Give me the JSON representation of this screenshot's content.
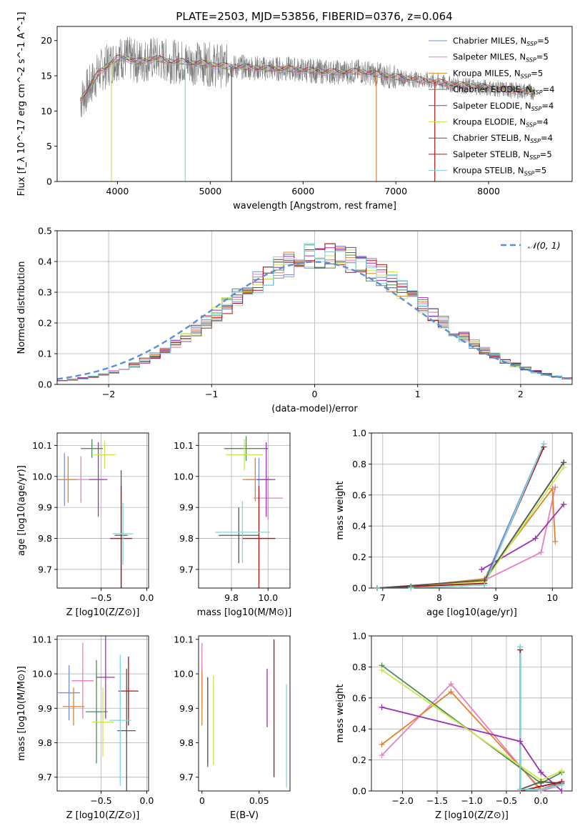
{
  "figure": {
    "title": "PLATE=2503, MJD=53856, FIBERID=0376, z=0.064"
  },
  "models": [
    {
      "name": "Chabrier MILES",
      "nssp": "5",
      "color": "#6f8fe0"
    },
    {
      "name": "Salpeter MILES",
      "nssp": "5",
      "color": "#e87fbf"
    },
    {
      "name": "Kroupa MILES",
      "nssp": "5",
      "color": "#e0822b"
    },
    {
      "name": "Chabrier ELODIE",
      "nssp": "4",
      "color": "#4e8b5a"
    },
    {
      "name": "Salpeter ELODIE",
      "nssp": "4",
      "color": "#9b2fb5"
    },
    {
      "name": "Kroupa ELODIE",
      "nssp": "4",
      "color": "#c9e84a"
    },
    {
      "name": "Chabrier STELIB",
      "nssp": "4",
      "color": "#555555"
    },
    {
      "name": "Salpeter STELIB",
      "nssp": "5",
      "color": "#b01010"
    },
    {
      "name": "Kroupa STELIB",
      "nssp": "5",
      "color": "#7fd6dc"
    }
  ],
  "chart_data": [
    {
      "id": "spectrum",
      "type": "line",
      "xlabel": "wavelength [Angstrom, rest frame]",
      "ylabel": "Flux [f_λ 10^-17 erg cm^-2 s^-1 A^-1]",
      "xlim": [
        3350,
        8900
      ],
      "ylim": [
        0,
        22
      ],
      "xticks": [
        4000,
        5000,
        6000,
        7000,
        8000
      ],
      "yticks": [
        0,
        5,
        10,
        15,
        20
      ],
      "grid": false,
      "legend_position": "upper-right",
      "data_color": "#7a7a7a",
      "continuum": [
        {
          "x": 3600,
          "y": 11.5
        },
        {
          "x": 3700,
          "y": 13.5
        },
        {
          "x": 3800,
          "y": 15.5
        },
        {
          "x": 3900,
          "y": 16.5
        },
        {
          "x": 4000,
          "y": 17.5
        },
        {
          "x": 4100,
          "y": 17.5
        },
        {
          "x": 4200,
          "y": 17.0
        },
        {
          "x": 4300,
          "y": 17.2
        },
        {
          "x": 4400,
          "y": 17.5
        },
        {
          "x": 4500,
          "y": 17.2
        },
        {
          "x": 4600,
          "y": 17.0
        },
        {
          "x": 4700,
          "y": 17.0
        },
        {
          "x": 4800,
          "y": 16.8
        },
        {
          "x": 4900,
          "y": 16.8
        },
        {
          "x": 5000,
          "y": 16.6
        },
        {
          "x": 5200,
          "y": 16.3
        },
        {
          "x": 5400,
          "y": 16.2
        },
        {
          "x": 5600,
          "y": 16.0
        },
        {
          "x": 5800,
          "y": 16.0
        },
        {
          "x": 6000,
          "y": 15.8
        },
        {
          "x": 6200,
          "y": 15.6
        },
        {
          "x": 6400,
          "y": 15.5
        },
        {
          "x": 6600,
          "y": 15.6
        },
        {
          "x": 6800,
          "y": 15.2
        },
        {
          "x": 7000,
          "y": 14.8
        },
        {
          "x": 7200,
          "y": 14.5
        },
        {
          "x": 7400,
          "y": 14.2
        },
        {
          "x": 7600,
          "y": 13.8
        },
        {
          "x": 7800,
          "y": 13.5
        },
        {
          "x": 8000,
          "y": 13.3
        },
        {
          "x": 8200,
          "y": 13.0
        },
        {
          "x": 8400,
          "y": 12.8
        },
        {
          "x": 8500,
          "y": 12.7
        }
      ],
      "dips": [
        {
          "x": 3934,
          "y": 0
        },
        {
          "x": 4730,
          "y": 0
        },
        {
          "x": 5230,
          "y": 0
        },
        {
          "x": 6790,
          "y": 0
        },
        {
          "x": 7420,
          "y": 0
        }
      ]
    },
    {
      "id": "residual-histogram",
      "type": "line",
      "xlabel": "(data-model)/error",
      "ylabel": "Normed distribution",
      "xlim": [
        -2.5,
        2.5
      ],
      "ylim": [
        0,
        0.5
      ],
      "xticks": [
        -2,
        -1,
        0,
        1,
        2
      ],
      "yticks": [
        0.0,
        0.1,
        0.2,
        0.3,
        0.4,
        0.5
      ],
      "grid": true,
      "legend": "𝒩(0, 1)",
      "legend_position": "upper-right",
      "reference_color": "#5a8fd8",
      "bin_width": 0.1,
      "shape_mu": 0.1,
      "shape_sigma": 0.95
    },
    {
      "id": "age-vs-Z",
      "type": "scatter",
      "xlabel": "Z [log10(Z/Z⊙)]",
      "ylabel": "age  [log10(age/yr)]",
      "xlim": [
        -0.98,
        0.02
      ],
      "ylim": [
        9.64,
        10.14
      ],
      "xticks": [
        -0.5,
        0.0
      ],
      "yticks": [
        9.7,
        9.8,
        9.9,
        10.0,
        10.1
      ],
      "grid": true,
      "points": [
        {
          "model": 0,
          "x": -0.9,
          "y": 9.99,
          "xerr": 0.1,
          "yerr": 0.085
        },
        {
          "model": 1,
          "x": -0.72,
          "y": 9.99,
          "xerr": 0.1,
          "yerr": 0.075
        },
        {
          "model": 2,
          "x": -0.86,
          "y": 9.99,
          "xerr": 0.1,
          "yerr": 0.075
        },
        {
          "model": 3,
          "x": -0.6,
          "y": 10.09,
          "xerr": 0.12,
          "yerr": 0.03
        },
        {
          "model": 4,
          "x": -0.53,
          "y": 9.99,
          "xerr": 0.1,
          "yerr": 0.12
        },
        {
          "model": 5,
          "x": -0.46,
          "y": 10.07,
          "xerr": 0.12,
          "yerr": 0.045
        },
        {
          "model": 6,
          "x": -0.28,
          "y": 9.81,
          "xerr": 0.07,
          "yerr": 0.21
        },
        {
          "model": 7,
          "x": -0.28,
          "y": 9.8,
          "xerr": 0.12,
          "yerr": 0.17
        },
        {
          "model": 8,
          "x": -0.26,
          "y": 9.815,
          "xerr": 0.11,
          "yerr": 0.1
        }
      ]
    },
    {
      "id": "age-vs-mass",
      "type": "scatter",
      "xlabel": "mass [log10(M/M⊙)]",
      "ylabel": "",
      "xlim": [
        9.62,
        10.12
      ],
      "ylim": [
        9.64,
        10.14
      ],
      "xticks": [
        9.8,
        10.0
      ],
      "yticks": [
        9.7,
        9.8,
        9.9,
        10.0,
        10.1
      ],
      "grid": true,
      "points": [
        {
          "model": 0,
          "x": 9.95,
          "y": 9.99,
          "xerr": 0.07,
          "yerr": 0.07
        },
        {
          "model": 1,
          "x": 10.0,
          "y": 9.93,
          "xerr": 0.08,
          "yerr": 0.07
        },
        {
          "model": 2,
          "x": 9.93,
          "y": 9.99,
          "xerr": 0.07,
          "yerr": 0.07
        },
        {
          "model": 3,
          "x": 9.88,
          "y": 10.09,
          "xerr": 0.12,
          "yerr": 0.04
        },
        {
          "model": 4,
          "x": 9.99,
          "y": 9.99,
          "xerr": 0.05,
          "yerr": 0.12
        },
        {
          "model": 5,
          "x": 9.87,
          "y": 10.07,
          "xerr": 0.1,
          "yerr": 0.05
        },
        {
          "model": 6,
          "x": 9.84,
          "y": 9.81,
          "xerr": 0.11,
          "yerr": 0.09
        },
        {
          "model": 7,
          "x": 9.95,
          "y": 9.8,
          "xerr": 0.09,
          "yerr": 0.17
        },
        {
          "model": 8,
          "x": 9.86,
          "y": 9.82,
          "xerr": 0.15,
          "yerr": 0.1
        }
      ]
    },
    {
      "id": "mass-weight-vs-age",
      "type": "line",
      "xlabel": "age  [log10(age/yr)]",
      "ylabel": "mass weight",
      "xlim": [
        6.8,
        10.35
      ],
      "ylim": [
        0,
        1.0
      ],
      "xticks": [
        7,
        8,
        9,
        10
      ],
      "yticks": [
        0.0,
        0.2,
        0.4,
        0.6,
        0.8,
        1.0
      ],
      "grid": true,
      "series": [
        {
          "model": 0,
          "x": [
            6.9,
            7.5,
            8.8,
            9.85
          ],
          "y": [
            0.0,
            0.01,
            0.05,
            0.93
          ]
        },
        {
          "model": 1,
          "x": [
            6.9,
            7.5,
            8.8,
            9.8,
            10.05
          ],
          "y": [
            0.0,
            0.01,
            0.05,
            0.23,
            0.65
          ]
        },
        {
          "model": 2,
          "x": [
            6.9,
            7.5,
            8.8,
            10.0,
            10.05
          ],
          "y": [
            0.0,
            0.01,
            0.06,
            0.64,
            0.3
          ]
        },
        {
          "model": 3,
          "x": [
            6.9,
            7.5,
            8.8,
            10.2
          ],
          "y": [
            0.0,
            0.01,
            0.05,
            0.81
          ]
        },
        {
          "model": 4,
          "x": [
            8.75,
            9.7,
            10.2
          ],
          "y": [
            0.12,
            0.32,
            0.54
          ]
        },
        {
          "model": 5,
          "x": [
            6.9,
            8.8,
            10.2
          ],
          "y": [
            0.0,
            0.04,
            0.78
          ]
        },
        {
          "model": 6,
          "x": [
            6.9,
            8.8,
            10.2
          ],
          "y": [
            0.0,
            0.05,
            0.81
          ]
        },
        {
          "model": 7,
          "x": [
            6.9,
            8.8,
            9.85
          ],
          "y": [
            0.0,
            0.03,
            0.91
          ]
        },
        {
          "model": 8,
          "x": [
            6.9,
            7.5,
            8.8,
            9.85
          ],
          "y": [
            0.0,
            0.0,
            0.02,
            0.93
          ]
        }
      ]
    },
    {
      "id": "mass-vs-Z",
      "type": "scatter",
      "xlabel": "Z [log10(Z/Z⊙)]",
      "ylabel": "mass [log10(M/M⊙)]",
      "xlim": [
        -0.98,
        0.02
      ],
      "ylim": [
        9.66,
        10.11
      ],
      "xticks": [
        -0.5,
        0.0
      ],
      "yticks": [
        9.7,
        9.8,
        9.9,
        10.0,
        10.1
      ],
      "grid": true,
      "points": [
        {
          "model": 0,
          "x": -0.85,
          "y": 9.945,
          "xerr": 0.12,
          "yerr": 0.08
        },
        {
          "model": 1,
          "x": -0.7,
          "y": 9.98,
          "xerr": 0.12,
          "yerr": 0.11
        },
        {
          "model": 2,
          "x": -0.8,
          "y": 9.905,
          "xerr": 0.12,
          "yerr": 0.055
        },
        {
          "model": 3,
          "x": -0.55,
          "y": 9.89,
          "xerr": 0.12,
          "yerr": 0.15
        },
        {
          "model": 4,
          "x": -0.45,
          "y": 9.99,
          "xerr": 0.1,
          "yerr": 0.12
        },
        {
          "model": 5,
          "x": -0.48,
          "y": 9.86,
          "xerr": 0.12,
          "yerr": 0.1
        },
        {
          "model": 6,
          "x": -0.22,
          "y": 9.835,
          "xerr": 0.1,
          "yerr": 0.18
        },
        {
          "model": 7,
          "x": -0.2,
          "y": 9.95,
          "xerr": 0.11,
          "yerr": 0.1
        },
        {
          "model": 8,
          "x": -0.29,
          "y": 9.865,
          "xerr": 0.12,
          "yerr": 0.19
        }
      ]
    },
    {
      "id": "mass-vs-ebv",
      "type": "scatter",
      "xlabel": "E(B-V)",
      "ylabel": "",
      "xlim": [
        -0.003,
        0.077
      ],
      "ylim": [
        9.66,
        10.11
      ],
      "xticks": [
        0.0,
        0.05
      ],
      "yticks": [
        9.7,
        9.8,
        9.9,
        10.0,
        10.1
      ],
      "grid": false,
      "points": [
        {
          "model": 0,
          "x": 0.0,
          "y": 9.995,
          "xerr": 0,
          "yerr": 0.03
        },
        {
          "model": 1,
          "x": 0.0,
          "y": 10.0,
          "xerr": 0,
          "yerr": 0.09
        },
        {
          "model": 2,
          "x": 0.0,
          "y": 9.93,
          "xerr": 0,
          "yerr": 0.08
        },
        {
          "model": 3,
          "x": 0.005,
          "y": 9.865,
          "xerr": 0,
          "yerr": 0.125
        },
        {
          "model": 4,
          "x": 0.057,
          "y": 9.93,
          "xerr": 0,
          "yerr": 0.085
        },
        {
          "model": 5,
          "x": 0.01,
          "y": 9.865,
          "xerr": 0,
          "yerr": 0.13
        },
        {
          "model": 6,
          "x": 0.005,
          "y": 9.86,
          "xerr": 0,
          "yerr": 0.13
        },
        {
          "model": 7,
          "x": 0.063,
          "y": 9.9,
          "xerr": 0,
          "yerr": 0.2
        },
        {
          "model": 8,
          "x": 0.074,
          "y": 9.82,
          "xerr": 0,
          "yerr": 0.15
        }
      ]
    },
    {
      "id": "mass-weight-vs-Z",
      "type": "line",
      "xlabel": "Z [log10(Z/Z⊙)]",
      "ylabel": "mass weight",
      "xlim": [
        -2.45,
        0.45
      ],
      "ylim": [
        0,
        1.0
      ],
      "xticks": [
        -2.0,
        -1.5,
        -1.0,
        -0.5,
        0.0
      ],
      "yticks": [
        0.0,
        0.2,
        0.4,
        0.6,
        0.8,
        1.0
      ],
      "grid": true,
      "series": [
        {
          "model": 0,
          "x": [
            -0.3,
            -0.3,
            0.0,
            0.3
          ],
          "y": [
            0.93,
            0.01,
            0.01,
            0.06
          ]
        },
        {
          "model": 1,
          "x": [
            -2.3,
            -1.3,
            0.0,
            0.3
          ],
          "y": [
            0.23,
            0.69,
            0.0,
            0.04
          ]
        },
        {
          "model": 2,
          "x": [
            -2.3,
            -1.3,
            0.0,
            0.3
          ],
          "y": [
            0.3,
            0.64,
            0.01,
            0.05
          ]
        },
        {
          "model": 3,
          "x": [
            -2.3,
            0.0,
            0.3
          ],
          "y": [
            0.81,
            0.05,
            0.12
          ]
        },
        {
          "model": 4,
          "x": [
            -2.3,
            -0.3,
            0.0,
            0.3
          ],
          "y": [
            0.54,
            0.32,
            0.12,
            0.0
          ]
        },
        {
          "model": 5,
          "x": [
            -2.3,
            0.0,
            0.3
          ],
          "y": [
            0.78,
            0.07,
            0.13
          ]
        },
        {
          "model": 6,
          "x": [
            -0.3,
            -0.3,
            0.0,
            0.3
          ],
          "y": [
            0.91,
            0.01,
            0.06,
            0.05
          ]
        },
        {
          "model": 7,
          "x": [
            -0.3,
            -0.3,
            0.0,
            0.3
          ],
          "y": [
            0.91,
            0.0,
            0.03,
            0.06
          ]
        },
        {
          "model": 8,
          "x": [
            -0.3,
            -0.3,
            0.0,
            0.3
          ],
          "y": [
            0.93,
            0.01,
            0.01,
            0.04
          ]
        }
      ]
    }
  ]
}
